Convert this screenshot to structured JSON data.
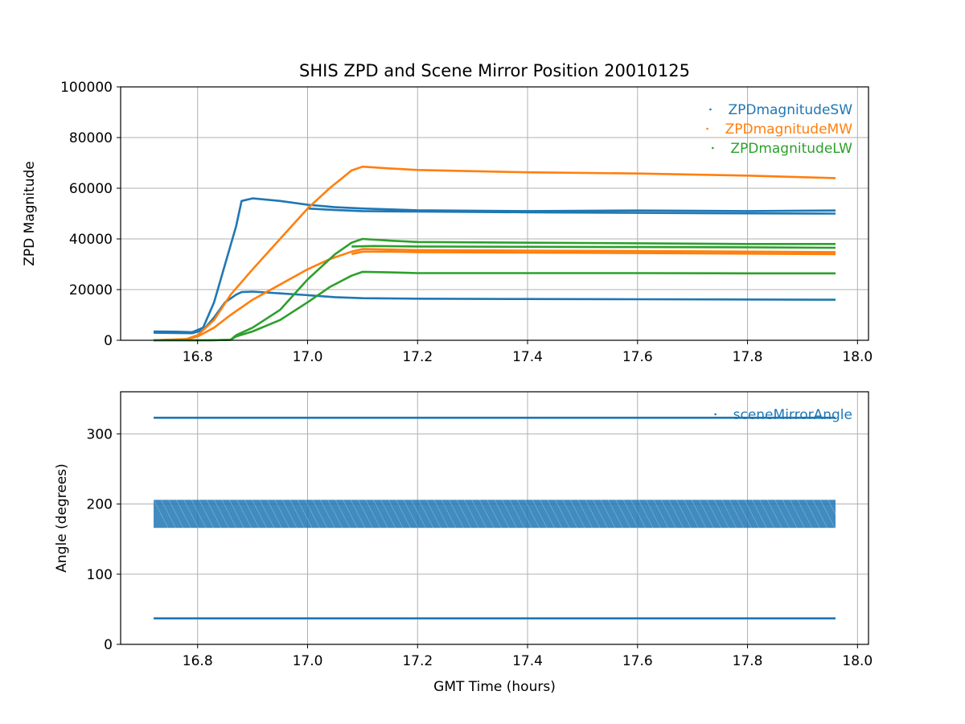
{
  "figure": {
    "title": "SHIS ZPD and Scene Mirror Position 20010125",
    "colors": {
      "sw": "#1f77b4",
      "mw": "#ff7f0e",
      "lw": "#2ca02c",
      "grid": "#b0b0b0"
    }
  },
  "chart_data": [
    {
      "type": "scatter",
      "xlabel": "",
      "ylabel": "ZPD Magnitude",
      "xlim": [
        16.66,
        18.02
      ],
      "ylim": [
        0,
        100000
      ],
      "xticks": [
        16.8,
        17.0,
        17.2,
        17.4,
        17.6,
        17.8,
        18.0
      ],
      "xtick_labels": [
        "16.8",
        "17.0",
        "17.2",
        "17.4",
        "17.6",
        "17.8",
        "18.0"
      ],
      "yticks": [
        0,
        20000,
        40000,
        60000,
        80000,
        100000
      ],
      "ytick_labels": [
        "0",
        "20000",
        "40000",
        "60000",
        "80000",
        "100000"
      ],
      "grid": true,
      "legend_position": "top-right",
      "series": [
        {
          "name": "ZPDmagnitudeSW",
          "color": "#1f77b4",
          "tracks": [
            {
              "x": [
                16.72,
                16.76,
                16.79,
                16.81,
                16.83,
                16.85,
                16.87,
                16.88,
                16.9,
                16.95,
                17.0,
                17.05,
                17.1,
                17.2,
                17.4,
                17.6,
                17.8,
                17.96
              ],
              "y": [
                3500,
                3400,
                3200,
                5000,
                15000,
                30000,
                45000,
                55000,
                56000,
                55000,
                53500,
                52500,
                52000,
                51300,
                51000,
                51200,
                51000,
                51200
              ]
            },
            {
              "x": [
                17.0,
                17.05,
                17.1,
                17.2,
                17.4,
                17.6,
                17.8,
                17.96
              ],
              "y": [
                52000,
                51400,
                51000,
                50800,
                50500,
                50300,
                50100,
                50000
              ]
            },
            {
              "x": [
                16.72,
                16.76,
                16.79,
                16.81,
                16.83,
                16.85,
                16.87,
                16.88,
                16.9,
                16.95,
                17.0,
                17.05,
                17.1,
                17.2,
                17.4,
                17.6,
                17.8,
                17.96
              ],
              "y": [
                3000,
                2900,
                2800,
                4000,
                9000,
                15000,
                18000,
                19000,
                19200,
                18500,
                17800,
                17000,
                16600,
                16400,
                16300,
                16200,
                16100,
                16000
              ]
            }
          ]
        },
        {
          "name": "ZPDmagnitudeMW",
          "color": "#ff7f0e",
          "tracks": [
            {
              "x": [
                16.72,
                16.78,
                16.8,
                16.83,
                16.86,
                16.9,
                16.95,
                17.0,
                17.04,
                17.08,
                17.1,
                17.15,
                17.2,
                17.4,
                17.6,
                17.8,
                17.96
              ],
              "y": [
                0,
                500,
                2000,
                8000,
                18000,
                28000,
                40000,
                52000,
                60000,
                67000,
                68500,
                67800,
                67200,
                66300,
                65800,
                65000,
                64000
              ]
            },
            {
              "x": [
                16.72,
                16.78,
                16.8,
                16.83,
                16.86,
                16.9,
                16.95,
                17.0,
                17.04,
                17.08,
                17.1,
                17.15,
                17.2,
                17.4,
                17.6,
                17.8,
                17.96
              ],
              "y": [
                0,
                400,
                1500,
                5000,
                10000,
                16000,
                22000,
                28000,
                32000,
                35000,
                36000,
                35800,
                35600,
                35400,
                35200,
                35000,
                34800
              ]
            },
            {
              "x": [
                17.08,
                17.1,
                17.15,
                17.2,
                17.4,
                17.6,
                17.8,
                17.96
              ],
              "y": [
                34000,
                35000,
                35000,
                34800,
                34600,
                34400,
                34200,
                34000
              ]
            }
          ]
        },
        {
          "name": "ZPDmagnitudeLW",
          "color": "#2ca02c",
          "tracks": [
            {
              "x": [
                16.72,
                16.82,
                16.86,
                16.87,
                16.9,
                16.95,
                17.0,
                17.05,
                17.08,
                17.1,
                17.15,
                17.2,
                17.4,
                17.6,
                17.8,
                17.96
              ],
              "y": [
                0,
                0,
                200,
                2000,
                5000,
                12000,
                24000,
                34000,
                38500,
                40000,
                39300,
                38800,
                38500,
                38300,
                38000,
                38000
              ]
            },
            {
              "x": [
                17.08,
                17.12,
                17.2,
                17.4,
                17.6,
                17.8,
                17.96
              ],
              "y": [
                37000,
                37200,
                37000,
                36900,
                36800,
                36700,
                36500
              ]
            },
            {
              "x": [
                16.72,
                16.82,
                16.86,
                16.87,
                16.9,
                16.95,
                17.0,
                17.04,
                17.08,
                17.1,
                17.15,
                17.2,
                17.4,
                17.6,
                17.8,
                17.96
              ],
              "y": [
                0,
                0,
                200,
                1500,
                3500,
                8000,
                15000,
                21000,
                25500,
                27000,
                26800,
                26500,
                26500,
                26500,
                26400,
                26400
              ]
            }
          ]
        }
      ]
    },
    {
      "type": "scatter",
      "xlabel": "GMT Time (hours)",
      "ylabel": "Angle (degrees)",
      "xlim": [
        16.66,
        18.02
      ],
      "ylim": [
        0,
        360
      ],
      "xticks": [
        16.8,
        17.0,
        17.2,
        17.4,
        17.6,
        17.8,
        18.0
      ],
      "xtick_labels": [
        "16.8",
        "17.0",
        "17.2",
        "17.4",
        "17.6",
        "17.8",
        "18.0"
      ],
      "yticks": [
        0,
        100,
        200,
        300
      ],
      "ytick_labels": [
        "0",
        "100",
        "200",
        "300"
      ],
      "grid": true,
      "legend_position": "top-right",
      "series": [
        {
          "name": "sceneMirrorAngle",
          "color": "#1f77b4",
          "lines": [
            {
              "x": [
                16.72,
                17.96
              ],
              "y": [
                323,
                323
              ]
            },
            {
              "x": [
                16.72,
                17.96
              ],
              "y": [
                37,
                37
              ]
            }
          ],
          "band": {
            "x": [
              16.72,
              17.96
            ],
            "y": [
              166,
              206
            ]
          }
        }
      ]
    }
  ]
}
